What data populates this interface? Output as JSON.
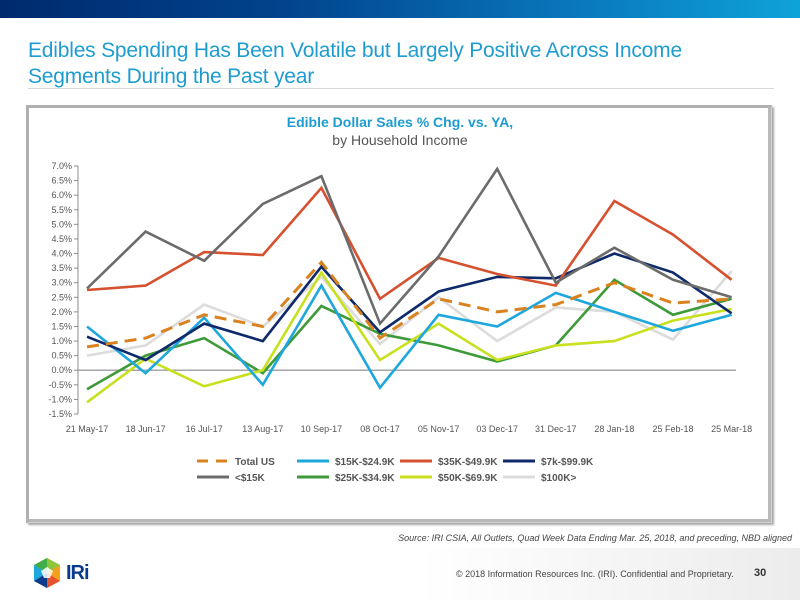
{
  "slide": {
    "title": "Edibles Spending Has Been Volatile but Largely Positive Across Income Segments During the Past year",
    "source": "Source: IRI CSIA, All Outlets, Quad Week Data Ending Mar. 25, 2018, and preceding, NBD aligned",
    "copyright": "© 2018 Information Resources Inc. (IRI). Confidential and Proprietary.",
    "page_number": "30",
    "logo_text": "IRi",
    "logo_icon": "iri-hexagon-logo-icon"
  },
  "chart_data": {
    "type": "line",
    "title": "Edible Dollar Sales % Chg. vs. YA,",
    "subtitle": "by Household Income",
    "xlabel": "",
    "ylabel": "",
    "ylim": [
      -1.5,
      7.0
    ],
    "y_ticks": [
      "-1.5%",
      "-1.0%",
      "-0.5%",
      "0.0%",
      "0.5%",
      "1.0%",
      "1.5%",
      "2.0%",
      "2.5%",
      "3.0%",
      "3.5%",
      "4.0%",
      "4.5%",
      "5.0%",
      "5.5%",
      "6.0%",
      "6.5%",
      "7.0%"
    ],
    "grid": false,
    "legend_position": "bottom",
    "x": [
      "21 May-17",
      "18 Jun-17",
      "16 Jul-17",
      "13 Aug-17",
      "10 Sep-17",
      "08 Oct-17",
      "05 Nov-17",
      "03 Dec-17",
      "31 Dec-17",
      "28 Jan-18",
      "25 Feb-18",
      "25 Mar-18"
    ],
    "series": [
      {
        "name": "Total US",
        "color": "#d9821f",
        "dashed": true,
        "values": [
          0.8,
          1.1,
          1.9,
          1.5,
          3.7,
          1.1,
          2.45,
          2.0,
          2.25,
          3.0,
          2.3,
          2.45
        ]
      },
      {
        "name": "$15K-$24.9K",
        "color": "#1ea7dc",
        "dashed": false,
        "values": [
          1.5,
          -0.1,
          1.8,
          -0.5,
          2.9,
          -0.6,
          1.9,
          1.5,
          2.65,
          2.0,
          1.35,
          1.9
        ]
      },
      {
        "name": "$35K-$49.9K",
        "color": "#d5512f",
        "dashed": false,
        "values": [
          2.75,
          2.9,
          4.05,
          3.95,
          6.25,
          2.45,
          3.85,
          3.3,
          2.9,
          5.8,
          4.65,
          3.1
        ]
      },
      {
        "name": "$7k-$99.9K",
        "color": "#0e2a6b",
        "dashed": false,
        "values": [
          1.15,
          0.35,
          1.6,
          1.0,
          3.55,
          1.3,
          2.7,
          3.2,
          3.15,
          4.0,
          3.35,
          1.95
        ]
      },
      {
        "name": "<$15K",
        "color": "#6b6b6b",
        "dashed": false,
        "values": [
          2.8,
          4.75,
          3.75,
          5.7,
          6.65,
          1.6,
          3.9,
          6.9,
          3.0,
          4.2,
          3.1,
          2.5
        ]
      },
      {
        "name": "$25K-$34.9K",
        "color": "#3f9a3a",
        "dashed": false,
        "values": [
          -0.65,
          0.5,
          1.1,
          -0.1,
          2.2,
          1.25,
          0.85,
          0.3,
          0.85,
          3.1,
          1.9,
          2.45
        ]
      },
      {
        "name": "$50K-$69.9K",
        "color": "#c8e01e",
        "dashed": false,
        "values": [
          -1.1,
          0.4,
          -0.55,
          0.0,
          3.35,
          0.35,
          1.6,
          0.35,
          0.85,
          1.0,
          1.7,
          2.1
        ]
      },
      {
        "name": "$100K>",
        "color": "#dcdcdc",
        "dashed": false,
        "values": [
          0.5,
          0.85,
          2.25,
          1.5,
          3.2,
          0.9,
          2.5,
          1.0,
          2.15,
          2.0,
          1.05,
          3.4
        ]
      }
    ]
  }
}
